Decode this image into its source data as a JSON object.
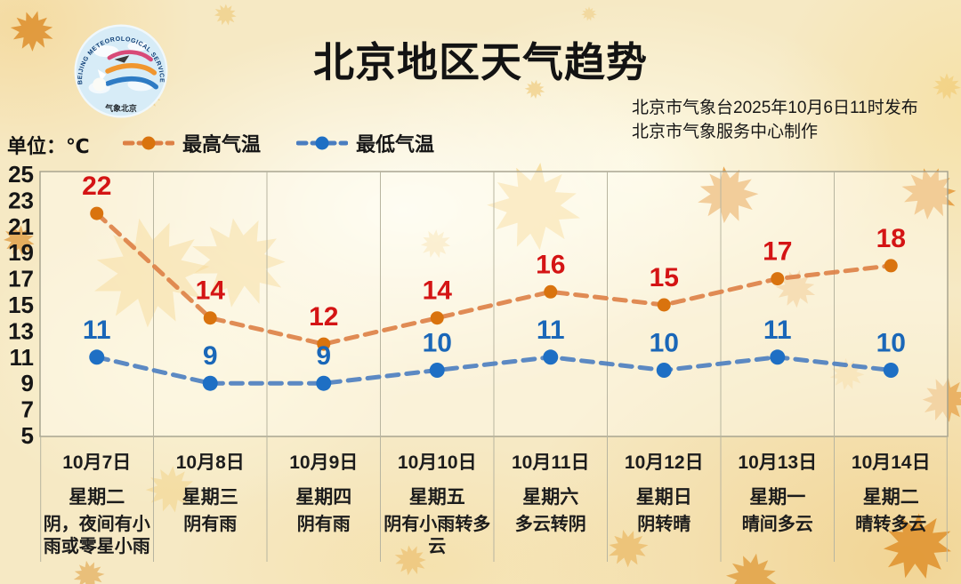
{
  "title": "北京地区天气趋势",
  "header": {
    "publish_line1": "北京市气象台2025年10月6日11时发布",
    "publish_line2": "北京市气象服务中心制作",
    "logo": {
      "text_top": "BEIJING METEOROLOGICAL SERVICE",
      "text_bottom": "气象北京"
    }
  },
  "unit_label": "单位：℃",
  "chart_data": {
    "type": "line",
    "title": "北京地区天气趋势",
    "ylabel": "℃",
    "ylim": [
      5,
      25
    ],
    "yticks": [
      25,
      23,
      21,
      19,
      17,
      15,
      13,
      11,
      9,
      7,
      5
    ],
    "grid": "vertical-column-separators-only",
    "legend_position": "top-left",
    "line_style": "dashed-with-round-markers",
    "categories": [
      "10月7日",
      "10月8日",
      "10月9日",
      "10月10日",
      "10月11日",
      "10月12日",
      "10月13日",
      "10月14日"
    ],
    "weekdays": [
      "星期二",
      "星期三",
      "星期四",
      "星期五",
      "星期六",
      "星期日",
      "星期一",
      "星期二"
    ],
    "weather": [
      "阴，夜间有小雨或零星小雨",
      "阴有雨",
      "阴有雨",
      "阴有小雨转多云",
      "多云转阴",
      "阴转晴",
      "晴间多云",
      "晴转多云"
    ],
    "series": [
      {
        "name": "最高气温",
        "values": [
          22,
          14,
          12,
          14,
          16,
          15,
          17,
          18
        ],
        "line_color": "#dd8045",
        "marker_color": "#d9730e",
        "label_color": "#d41414"
      },
      {
        "name": "最低气温",
        "values": [
          11,
          9,
          9,
          10,
          11,
          10,
          11,
          10
        ],
        "line_color": "#4a7dc0",
        "marker_color": "#1e6fc4",
        "label_color": "#1a67b8"
      }
    ]
  }
}
